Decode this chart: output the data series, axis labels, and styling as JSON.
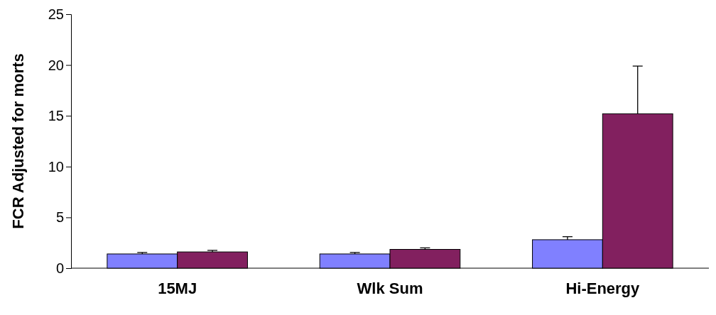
{
  "chart_data": {
    "type": "bar",
    "ylabel": "FCR Adjusted for morts",
    "categories": [
      "15MJ",
      "Wlk Sum",
      "Hi-Energy"
    ],
    "series": [
      {
        "color": "#8080ff",
        "values": [
          1.4,
          1.4,
          2.8
        ],
        "errors": [
          [
            1.4,
            1.55
          ],
          [
            1.4,
            1.55
          ],
          [
            2.8,
            3.1
          ]
        ]
      },
      {
        "color": "#82205f",
        "values": [
          1.6,
          1.85,
          15.2
        ],
        "errors": [
          [
            1.6,
            1.75
          ],
          [
            1.85,
            2.0
          ],
          [
            15.2,
            19.9
          ]
        ]
      }
    ],
    "ylim": [
      0,
      25
    ],
    "yticks": [
      0,
      5,
      10,
      15,
      20,
      25
    ],
    "grid": false
  }
}
